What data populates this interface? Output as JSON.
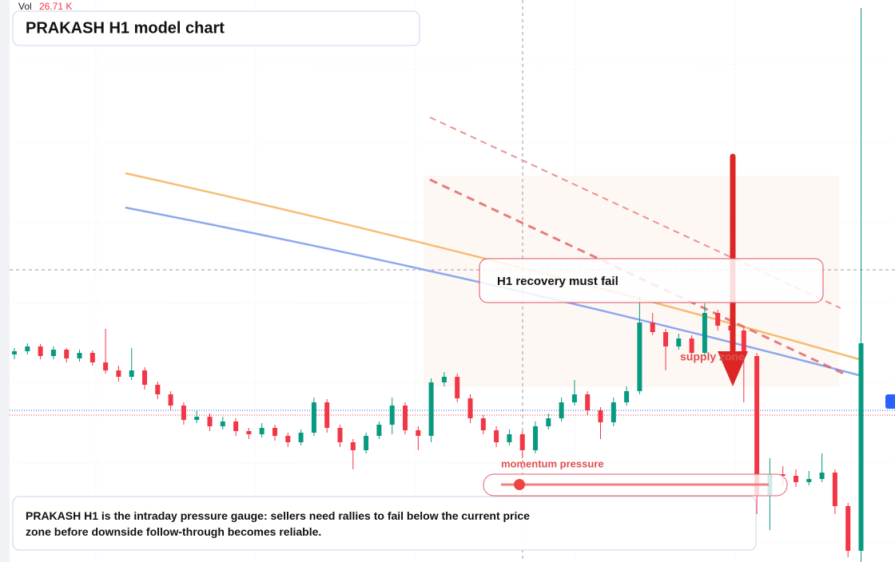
{
  "chart_data": {
    "type": "candlestick",
    "title": "PRAKASH H1 model chart",
    "volume_label": "Vol",
    "volume_value": "26.71 K",
    "annotation": "H1 recovery must fail",
    "zone_label": "supply zone",
    "gauge_label": "momentum pressure",
    "description": "PRAKASH H1 is the intraday pressure gauge: sellers need rallies to fail below the current price zone before downside follow-through becomes reliable.",
    "up_color": "#089981",
    "down_color": "#f23645",
    "ylim": [
      0,
      704
    ],
    "candles": [
      [
        260,
        268,
        254,
        264
      ],
      [
        264,
        274,
        260,
        270
      ],
      [
        270,
        273,
        254,
        258
      ],
      [
        258,
        270,
        254,
        266
      ],
      [
        266,
        268,
        250,
        255
      ],
      [
        255,
        266,
        251,
        262
      ],
      [
        262,
        265,
        246,
        250
      ],
      [
        250,
        292,
        236,
        240
      ],
      [
        240,
        246,
        226,
        232
      ],
      [
        232,
        268,
        228,
        240
      ],
      [
        240,
        244,
        216,
        222
      ],
      [
        222,
        226,
        204,
        210
      ],
      [
        210,
        214,
        190,
        196
      ],
      [
        196,
        200,
        172,
        178
      ],
      [
        178,
        190,
        174,
        182
      ],
      [
        182,
        186,
        164,
        170
      ],
      [
        170,
        182,
        166,
        176
      ],
      [
        176,
        180,
        158,
        164
      ],
      [
        164,
        168,
        154,
        160
      ],
      [
        160,
        174,
        156,
        168
      ],
      [
        168,
        172,
        152,
        158
      ],
      [
        158,
        162,
        144,
        150
      ],
      [
        150,
        166,
        146,
        162
      ],
      [
        162,
        206,
        158,
        200
      ],
      [
        200,
        204,
        162,
        168
      ],
      [
        168,
        172,
        144,
        150
      ],
      [
        150,
        154,
        116,
        140
      ],
      [
        140,
        162,
        136,
        158
      ],
      [
        158,
        176,
        154,
        172
      ],
      [
        172,
        206,
        160,
        196
      ],
      [
        196,
        200,
        160,
        165
      ],
      [
        165,
        170,
        140,
        158
      ],
      [
        158,
        230,
        150,
        225
      ],
      [
        225,
        238,
        220,
        232
      ],
      [
        232,
        236,
        200,
        205
      ],
      [
        205,
        210,
        174,
        180
      ],
      [
        180,
        184,
        160,
        165
      ],
      [
        165,
        170,
        144,
        150
      ],
      [
        150,
        166,
        146,
        160
      ],
      [
        160,
        164,
        130,
        140
      ],
      [
        140,
        176,
        136,
        170
      ],
      [
        170,
        186,
        166,
        180
      ],
      [
        180,
        206,
        176,
        200
      ],
      [
        200,
        228,
        196,
        210
      ],
      [
        210,
        214,
        184,
        190
      ],
      [
        190,
        194,
        154,
        175
      ],
      [
        175,
        206,
        170,
        200
      ],
      [
        200,
        220,
        196,
        214
      ],
      [
        214,
        334,
        210,
        300
      ],
      [
        300,
        312,
        284,
        288
      ],
      [
        288,
        292,
        240,
        270
      ],
      [
        270,
        286,
        266,
        280
      ],
      [
        280,
        284,
        256,
        262
      ],
      [
        262,
        324,
        258,
        312
      ],
      [
        312,
        316,
        290,
        296
      ],
      [
        296,
        306,
        286,
        290
      ],
      [
        290,
        294,
        200,
        258
      ],
      [
        258,
        262,
        60,
        84
      ],
      [
        84,
        130,
        40,
        110
      ],
      [
        110,
        120,
        96,
        108
      ],
      [
        108,
        116,
        94,
        100
      ],
      [
        100,
        114,
        96,
        104
      ],
      [
        104,
        136,
        100,
        112
      ],
      [
        112,
        116,
        60,
        70
      ],
      [
        70,
        74,
        6,
        14
      ],
      [
        14,
        694,
        0,
        274
      ]
    ]
  }
}
